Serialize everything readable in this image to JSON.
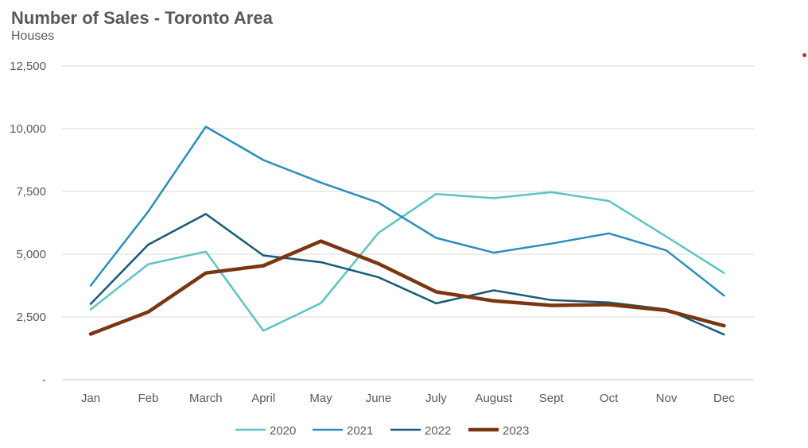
{
  "chart_data": {
    "type": "line",
    "title": "Number of Sales - Toronto Area",
    "subtitle": "Houses",
    "xlabel": "",
    "ylabel": "",
    "categories": [
      "Jan",
      "Feb",
      "March",
      "April",
      "May",
      "June",
      "July",
      "August",
      "Sept",
      "Oct",
      "Nov",
      "Dec"
    ],
    "y_ticks": [
      0,
      2500,
      5000,
      7500,
      10000,
      12500
    ],
    "y_tick_labels": [
      "-",
      "2,500",
      "5,000",
      "7,500",
      "10,000",
      "12,500"
    ],
    "ylim": [
      0,
      12500
    ],
    "grid": true,
    "legend_position": "bottom",
    "series": [
      {
        "name": "2020",
        "color": "#5bc4c4",
        "line_width": 2.5,
        "values": [
          2800,
          4600,
          5100,
          1950,
          3050,
          5850,
          7400,
          7230,
          7470,
          7120,
          5700,
          4250
        ]
      },
      {
        "name": "2021",
        "color": "#2a8dbf",
        "line_width": 2.5,
        "values": [
          3750,
          6700,
          10080,
          8750,
          7850,
          7050,
          5650,
          5060,
          5420,
          5830,
          5150,
          3350
        ]
      },
      {
        "name": "2022",
        "color": "#165a78",
        "line_width": 2.5,
        "values": [
          3020,
          5380,
          6600,
          4950,
          4680,
          4080,
          3040,
          3560,
          3170,
          3080,
          2800,
          1800
        ]
      },
      {
        "name": "2023",
        "color": "#7b3510",
        "line_width": 4.5,
        "values": [
          1820,
          2700,
          4250,
          4540,
          5520,
          4620,
          3500,
          3140,
          2960,
          2990,
          2760,
          2150
        ]
      }
    ]
  }
}
